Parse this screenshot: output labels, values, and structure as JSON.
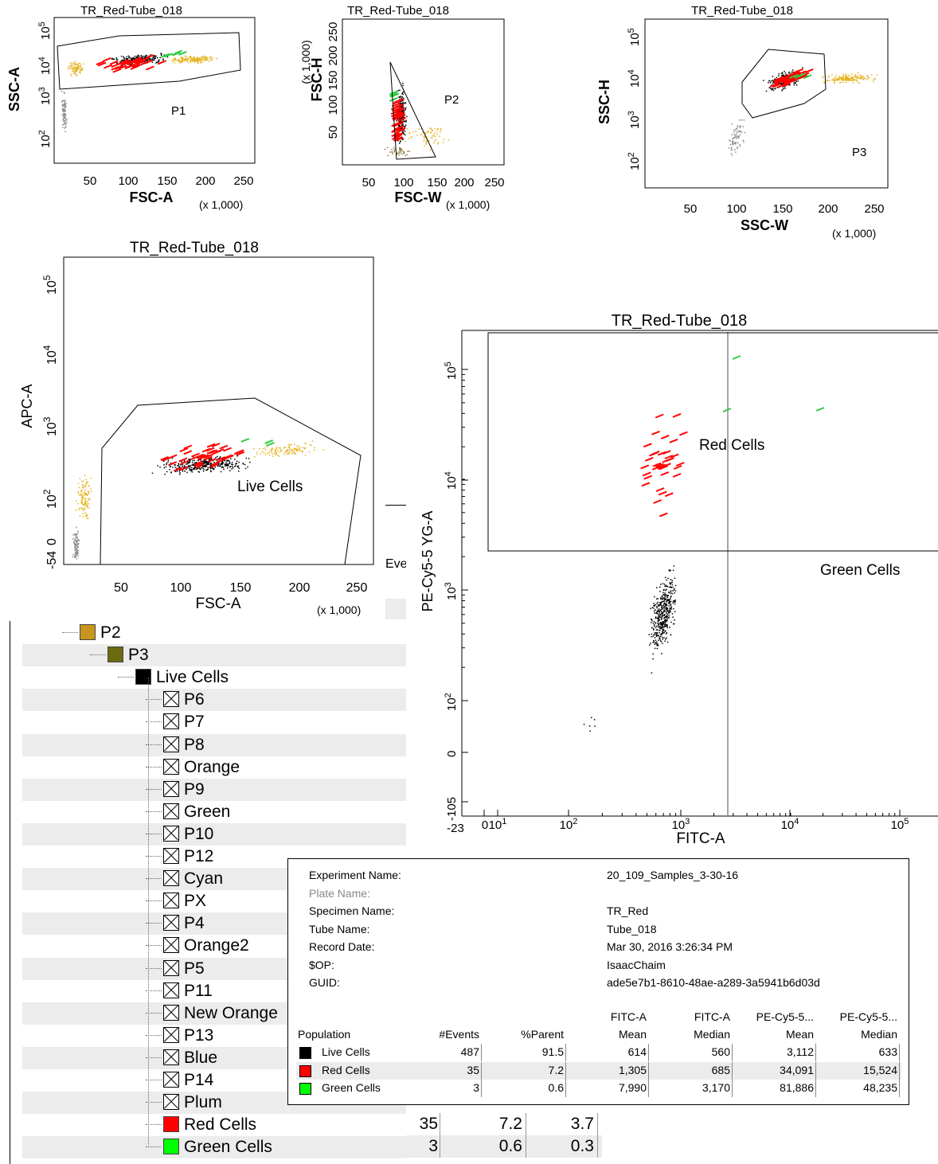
{
  "chart_data": [
    {
      "type": "scatter",
      "title": "TR_Red-Tube_018",
      "xlabel": "FSC-A",
      "ylabel": "SSC-A",
      "x_scale_label": "(x 1,000)",
      "x_ticks": [
        "50",
        "100",
        "150",
        "200",
        "250"
      ],
      "y_ticks": [
        "10",
        "10",
        "10",
        "10"
      ],
      "y_tick_exps": [
        "2",
        "3",
        "4",
        "5"
      ],
      "gates": [
        "P1"
      ],
      "series_colors": {
        "gray": "#8c8c8c",
        "gold": "#e6b422",
        "black": "#000000",
        "red": "#ff0000",
        "green": "#2ecc40"
      }
    },
    {
      "type": "scatter",
      "title": "TR_Red-Tube_018",
      "xlabel": "FSC-W",
      "ylabel": "FSC-H",
      "y_scale_label": "(x 1,000)",
      "x_scale_label": "(x 1,000)",
      "x_ticks": [
        "50",
        "100",
        "150",
        "200",
        "250"
      ],
      "y_ticks": [
        "50",
        "100",
        "150",
        "200",
        "250"
      ],
      "gates": [
        "P2"
      ]
    },
    {
      "type": "scatter",
      "title": "TR_Red-Tube_018",
      "xlabel": "SSC-W",
      "ylabel": "SSC-H",
      "x_scale_label": "(x 1,000)",
      "x_ticks": [
        "50",
        "100",
        "150",
        "200",
        "250"
      ],
      "y_ticks": [
        "10",
        "10",
        "10",
        "10"
      ],
      "y_tick_exps": [
        "2",
        "3",
        "4",
        "5"
      ],
      "gates": [
        "P3"
      ]
    },
    {
      "type": "scatter",
      "title": "TR_Red-Tube_018",
      "xlabel": "FSC-A",
      "ylabel": "APC-A",
      "x_scale_label": "(x 1,000)",
      "x_ticks": [
        "50",
        "100",
        "150",
        "200",
        "250"
      ],
      "y_ticks": [
        "-54",
        "0",
        "10",
        "10",
        "10",
        "10"
      ],
      "y_tick_exps": [
        "",
        "",
        "2",
        "3",
        "4",
        "5"
      ],
      "gates": [
        "Live Cells"
      ]
    },
    {
      "type": "scatter",
      "title": "TR_Red-Tube_018",
      "xlabel": "FITC-A",
      "ylabel": "PE-Cy5-5 YG-A",
      "x_ticks": [
        "-23",
        "0",
        "10",
        "10",
        "10",
        "10",
        "10"
      ],
      "x_tick_exps": [
        "",
        "",
        "1",
        "2",
        "3",
        "4",
        "5"
      ],
      "y_ticks": [
        "-105",
        "0",
        "10",
        "10",
        "10",
        "10"
      ],
      "y_tick_exps": [
        "",
        "",
        "2",
        "3",
        "4",
        "5"
      ],
      "gates": [
        "Red Cells",
        "Green Cells"
      ]
    }
  ],
  "partial_label": "Eve",
  "hierarchy": [
    {
      "label": "P2",
      "color": "#c8961e"
    },
    {
      "label": "P3",
      "color": "#6b6b10"
    },
    {
      "label": "Live Cells",
      "color": "#000000"
    },
    {
      "label": "P6"
    },
    {
      "label": "P7"
    },
    {
      "label": "P8"
    },
    {
      "label": "Orange"
    },
    {
      "label": "P9"
    },
    {
      "label": "Green"
    },
    {
      "label": "P10"
    },
    {
      "label": "P12"
    },
    {
      "label": "Cyan"
    },
    {
      "label": "PX"
    },
    {
      "label": "P4"
    },
    {
      "label": "Orange2"
    },
    {
      "label": "P5"
    },
    {
      "label": "P11"
    },
    {
      "label": "New Orange"
    },
    {
      "label": "P13"
    },
    {
      "label": "Blue"
    },
    {
      "label": "P14"
    },
    {
      "label": "Plum"
    },
    {
      "label": "Red Cells",
      "color": "#ff0000"
    },
    {
      "label": "Green Cells",
      "color": "#00ff00"
    }
  ],
  "hierarchy_stats": [
    {
      "events": "35",
      "parent": "7.2",
      "total": "3.7"
    },
    {
      "events": "3",
      "parent": "0.6",
      "total": "0.3"
    }
  ],
  "meta": {
    "labels": [
      "Experiment Name:",
      "Plate Name:",
      "Specimen Name:",
      "Tube Name:",
      "Record Date:",
      "$OP:",
      "GUID:"
    ],
    "values": [
      "20_109_Samples_3-30-16",
      "",
      "TR_Red",
      "Tube_018",
      "Mar 30, 2016 3:26:34 PM",
      "IsaacChaim",
      "ade5e7b1-8610-48ae-a289-3a5941b6d03d"
    ]
  },
  "stats_table": {
    "col1": "Population",
    "col2": "#Events",
    "col3": "%Parent",
    "col4a": "FITC-A",
    "col4b": "Mean",
    "col5a": "FITC-A",
    "col5b": "Median",
    "col6a": "PE-Cy5-5...",
    "col6b": "Mean",
    "col7a": "PE-Cy5-5...",
    "col7b": "Median",
    "rows": [
      {
        "pop": "Live Cells",
        "color": "#000000",
        "events": "487",
        "parent": "91.5",
        "fmean": "614",
        "fmed": "560",
        "pmean": "3,112",
        "pmed": "633"
      },
      {
        "pop": "Red Cells",
        "color": "#ff0000",
        "events": "35",
        "parent": "7.2",
        "fmean": "1,305",
        "fmed": "685",
        "pmean": "34,091",
        "pmed": "15,524"
      },
      {
        "pop": "Green Cells",
        "color": "#00ff00",
        "events": "3",
        "parent": "0.6",
        "fmean": "7,990",
        "fmed": "3,170",
        "pmean": "81,886",
        "pmed": "48,235"
      }
    ]
  }
}
